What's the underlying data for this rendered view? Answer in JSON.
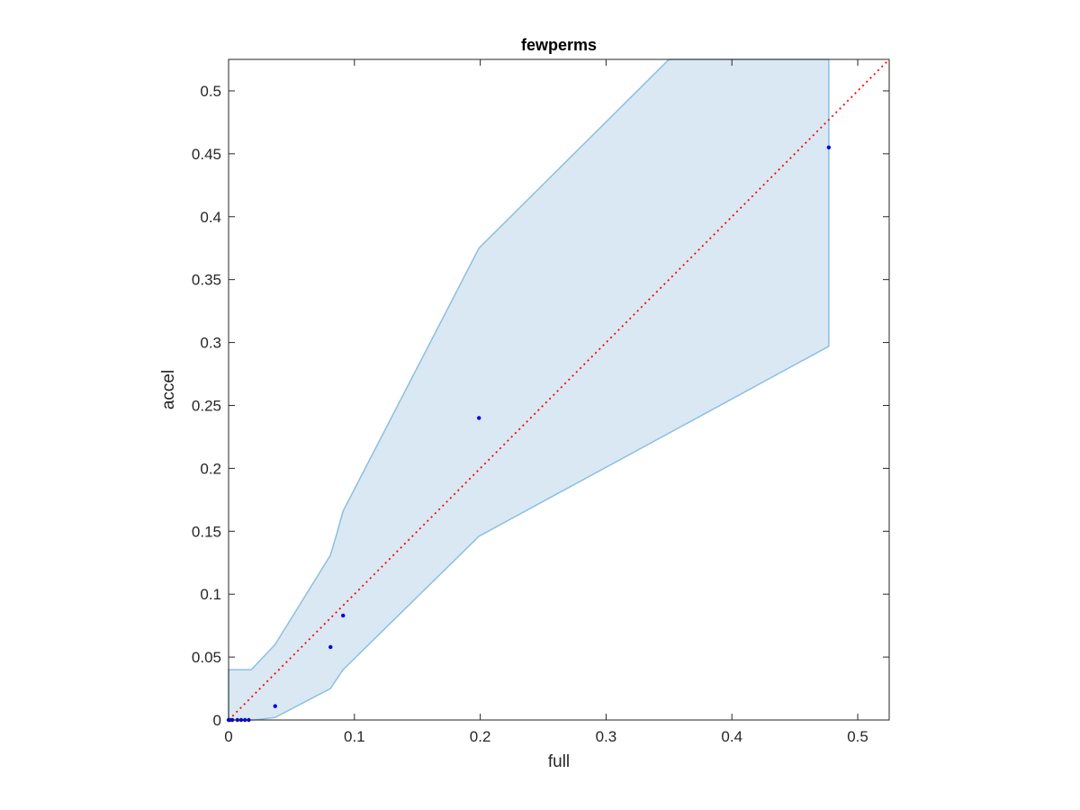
{
  "chart_data": {
    "type": "scatter",
    "title": "fewperms",
    "xlabel": "full",
    "ylabel": "accel",
    "xlim": [
      0,
      0.525
    ],
    "ylim": [
      0,
      0.525
    ],
    "xticks": [
      0,
      0.1,
      0.2,
      0.3,
      0.4,
      0.5
    ],
    "xtick_labels": [
      "0",
      "0.1",
      "0.2",
      "0.3",
      "0.4",
      "0.5"
    ],
    "yticks": [
      0,
      0.05,
      0.1,
      0.15,
      0.2,
      0.25,
      0.3,
      0.35,
      0.4,
      0.45,
      0.5
    ],
    "ytick_labels": [
      "0",
      "0.05",
      "0.1",
      "0.15",
      "0.2",
      "0.25",
      "0.3",
      "0.35",
      "0.4",
      "0.45",
      "0.5"
    ],
    "grid": false,
    "points": {
      "x": [
        0,
        0.001,
        0.003,
        0.007,
        0.01,
        0.013,
        0.016,
        0.037,
        0.081,
        0.091,
        0.199,
        0.477
      ],
      "y": [
        0,
        0,
        0,
        0,
        0,
        0,
        0,
        0.011,
        0.058,
        0.083,
        0.24,
        0.455
      ],
      "color": "#0000e6"
    },
    "band": {
      "upper": {
        "x": [
          0,
          0.018,
          0.037,
          0.081,
          0.086,
          0.091,
          0.199,
          0.35
        ],
        "y": [
          0.04,
          0.04,
          0.06,
          0.131,
          0.148,
          0.166,
          0.375,
          0.525
        ]
      },
      "right_edge": {
        "x": 0.477,
        "y": [
          0.525,
          0.297
        ]
      },
      "lower": {
        "x": [
          0.477,
          0.199,
          0.091,
          0.081,
          0.037,
          0.02,
          0
        ],
        "y": [
          0.297,
          0.146,
          0.04,
          0.025,
          0.002,
          0,
          0
        ]
      },
      "fill_color": "#dae8f4",
      "edge_color": "#8bbfe0"
    },
    "reference_line": {
      "x": [
        0,
        0.525
      ],
      "y": [
        0,
        0.525
      ],
      "color": "#ff0000",
      "style": "dotted"
    }
  }
}
